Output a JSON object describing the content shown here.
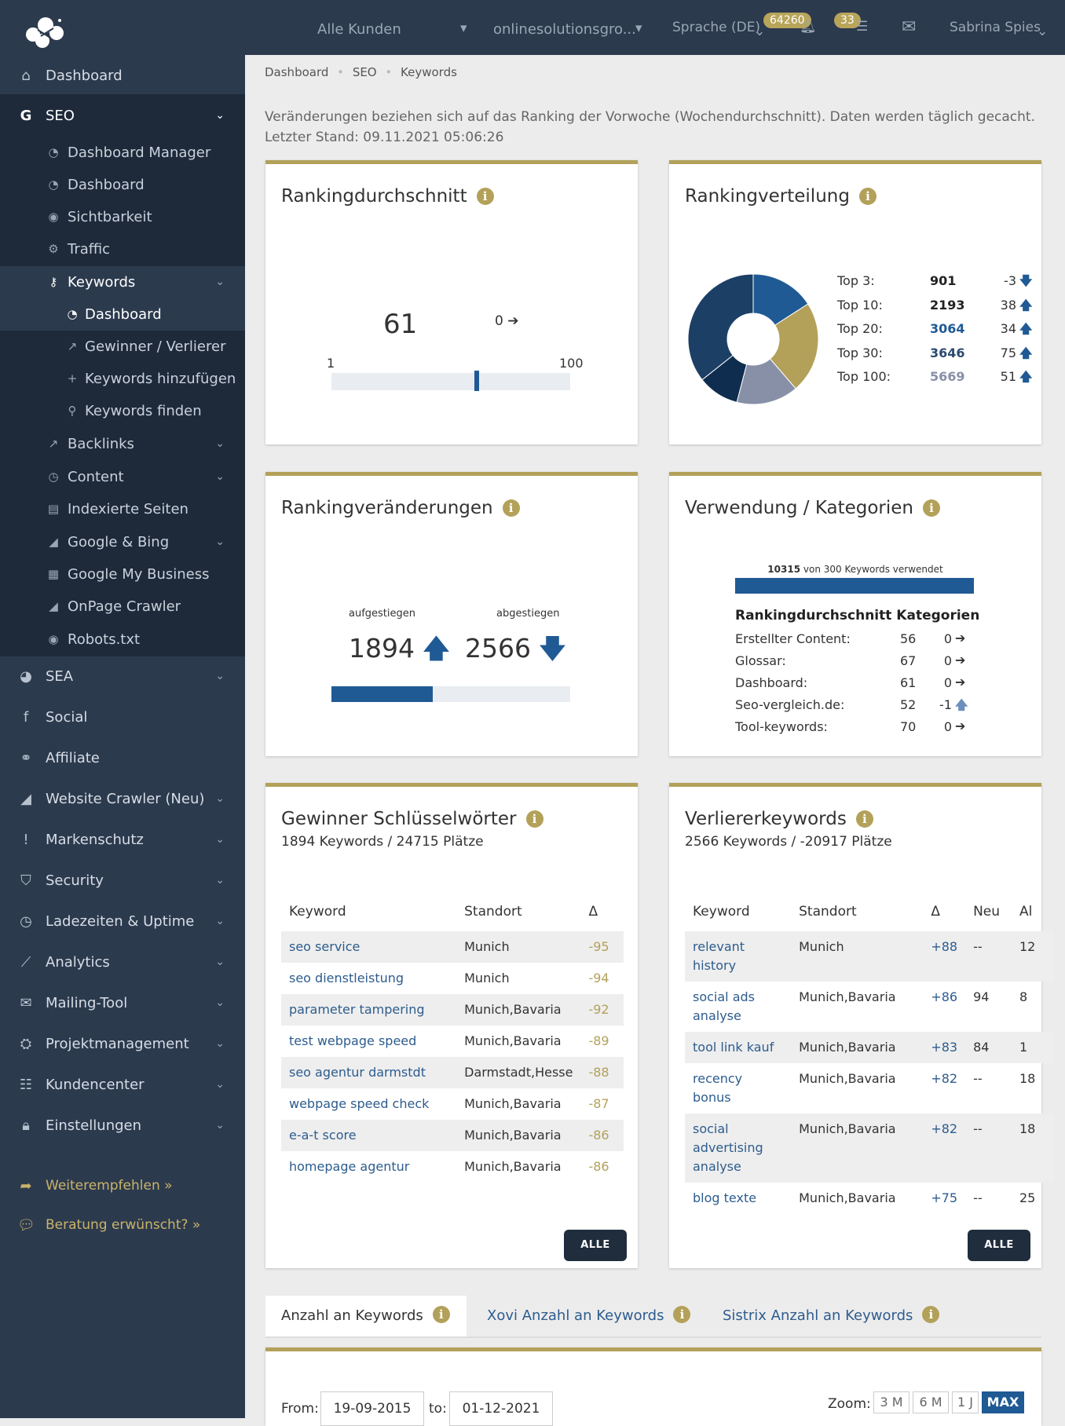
{
  "topbar": {
    "kunden": "Alle Kunden",
    "domain": "onlinesolutionsgro...",
    "sprache": "Sprache (DE)",
    "badge1": "64260",
    "badge2": "33",
    "user": "Sabrina Spies"
  },
  "sidebar": {
    "main": [
      {
        "label": "Dashboard",
        "icon": "home-icon"
      },
      {
        "label": "SEO",
        "icon": "google-icon"
      }
    ],
    "seo_sub": [
      "Dashboard Manager",
      "Dashboard",
      "Sichtbarkeit",
      "Traffic",
      "Keywords"
    ],
    "kw_sub": [
      "Dashboard",
      "Gewinner / Verlierer",
      "Keywords hinzufügen",
      "Keywords finden"
    ],
    "seo_sub2": [
      "Backlinks",
      "Content",
      "Indexierte Seiten",
      "Google & Bing",
      "Google My Business",
      "OnPage Crawler",
      "Robots.txt"
    ],
    "rest": [
      "SEA",
      "Social",
      "Affiliate",
      "Website Crawler (Neu)",
      "Markenschutz",
      "Security",
      "Ladezeiten & Uptime",
      "Analytics",
      "Mailing-Tool",
      "Projektmanagement",
      "Kundencenter",
      "Einstellungen"
    ],
    "links": [
      "Weiterempfehlen »",
      "Beratung erwünscht? »"
    ]
  },
  "breadcrumb": [
    "Dashboard",
    "SEO",
    "Keywords"
  ],
  "note": "Veränderungen beziehen sich auf das Ranking der Vorwoche (Wochendurchschnitt). Daten werden täglich gecacht.",
  "note2": "Letzter Stand: 09.11.2021 05:06:26",
  "ranking": {
    "title": "Rankingdurchschnitt",
    "value": "61",
    "change": "0",
    "min": "1",
    "max": "100",
    "level": 0.61
  },
  "verteilung": {
    "title": "Rankingverteilung",
    "rows": [
      {
        "label": "Top 3:",
        "value": "901",
        "delta": "-3",
        "dir": "down",
        "color": "#222"
      },
      {
        "label": "Top 10:",
        "value": "2193",
        "delta": "38",
        "dir": "up",
        "color": "#222"
      },
      {
        "label": "Top 20:",
        "value": "3064",
        "delta": "34",
        "dir": "up",
        "color": "#1f5a94"
      },
      {
        "label": "Top 30:",
        "value": "3646",
        "delta": "75",
        "dir": "up",
        "color": "#2c4a70"
      },
      {
        "label": "Top 100:",
        "value": "5669",
        "delta": "51",
        "dir": "up",
        "color": "#8890a8"
      }
    ]
  },
  "chart_data": {
    "type": "pie",
    "slices": [
      {
        "name": "Top 3",
        "value": 901,
        "color": "#1f5a94"
      },
      {
        "name": "Top 10",
        "value": 1292,
        "color": "#b3a15a"
      },
      {
        "name": "Top 20",
        "value": 871,
        "color": "#8890a8"
      },
      {
        "name": "Top 30",
        "value": 582,
        "color": "#0f2d4e"
      },
      {
        "name": "Top 100",
        "value": 2023,
        "color": "#1c3f66"
      }
    ]
  },
  "veraenderungen": {
    "title": "Rankingveränderungen",
    "up_label": "aufgestiegen",
    "down_label": "abgestiegen",
    "up": "1894",
    "down": "2566",
    "ratio": 0.425
  },
  "verwendung": {
    "title": "Verwendung / Kategorien",
    "used": "10315",
    "used_text": "von 300 Keywords verwendet",
    "cat_title": "Rankingdurchschnitt Kategorien",
    "cats": [
      {
        "name": "Erstellter Content:",
        "value": "56",
        "delta": "0",
        "dir": "right"
      },
      {
        "name": "Glossar:",
        "value": "67",
        "delta": "0",
        "dir": "right"
      },
      {
        "name": "Dashboard:",
        "value": "61",
        "delta": "0",
        "dir": "right"
      },
      {
        "name": "Seo-vergleich.de:",
        "value": "52",
        "delta": "-1",
        "dir": "up"
      },
      {
        "name": "Tool-keywords:",
        "value": "70",
        "delta": "0",
        "dir": "right"
      }
    ]
  },
  "gewinner": {
    "title": "Gewinner Schlüsselwörter",
    "subtitle": "1894 Keywords / 24715 Plätze",
    "cols": [
      "Keyword",
      "Standort",
      "Δ"
    ],
    "rows": [
      [
        "seo service",
        "Munich",
        "-95"
      ],
      [
        "seo dienstleistung",
        "Munich",
        "-94"
      ],
      [
        "parameter tampering",
        "Munich,Bavaria",
        "-92"
      ],
      [
        "test webpage speed",
        "Munich,Bavaria",
        "-89"
      ],
      [
        "seo agentur darmstdt",
        "Darmstadt,Hesse",
        "-88"
      ],
      [
        "webpage speed check",
        "Munich,Bavaria",
        "-87"
      ],
      [
        "e-a-t score",
        "Munich,Bavaria",
        "-86"
      ],
      [
        "homepage agentur",
        "Munich,Bavaria",
        "-86"
      ]
    ],
    "button": "ALLE"
  },
  "verlierer": {
    "title": "Verliererkeywords",
    "subtitle": "2566 Keywords / -20917 Plätze",
    "cols": [
      "Keyword",
      "Standort",
      "Δ",
      "Neu",
      "Al"
    ],
    "rows": [
      [
        "relevant history",
        "Munich",
        "+88",
        "--",
        "12"
      ],
      [
        "social ads analyse",
        "Munich,Bavaria",
        "+86",
        "94",
        "8"
      ],
      [
        "tool link kauf",
        "Munich,Bavaria",
        "+83",
        "84",
        "1"
      ],
      [
        "recency bonus",
        "Munich,Bavaria",
        "+82",
        "--",
        "18"
      ],
      [
        "social advertising analyse",
        "Munich,Bavaria",
        "+82",
        "--",
        "18"
      ],
      [
        "blog texte",
        "Munich,Bavaria",
        "+75",
        "--",
        "25"
      ]
    ],
    "button": "ALLE"
  },
  "tabs": [
    "Anzahl an Keywords",
    "Xovi Anzahl an Keywords",
    "Sistrix Anzahl an Keywords"
  ],
  "date": {
    "from_label": "From:",
    "from": "19-09-2015",
    "to_label": "to:",
    "to": "01-12-2021",
    "zoom_label": "Zoom:",
    "zoom": [
      "3 M",
      "6 M",
      "1 J",
      "MAX"
    ]
  }
}
